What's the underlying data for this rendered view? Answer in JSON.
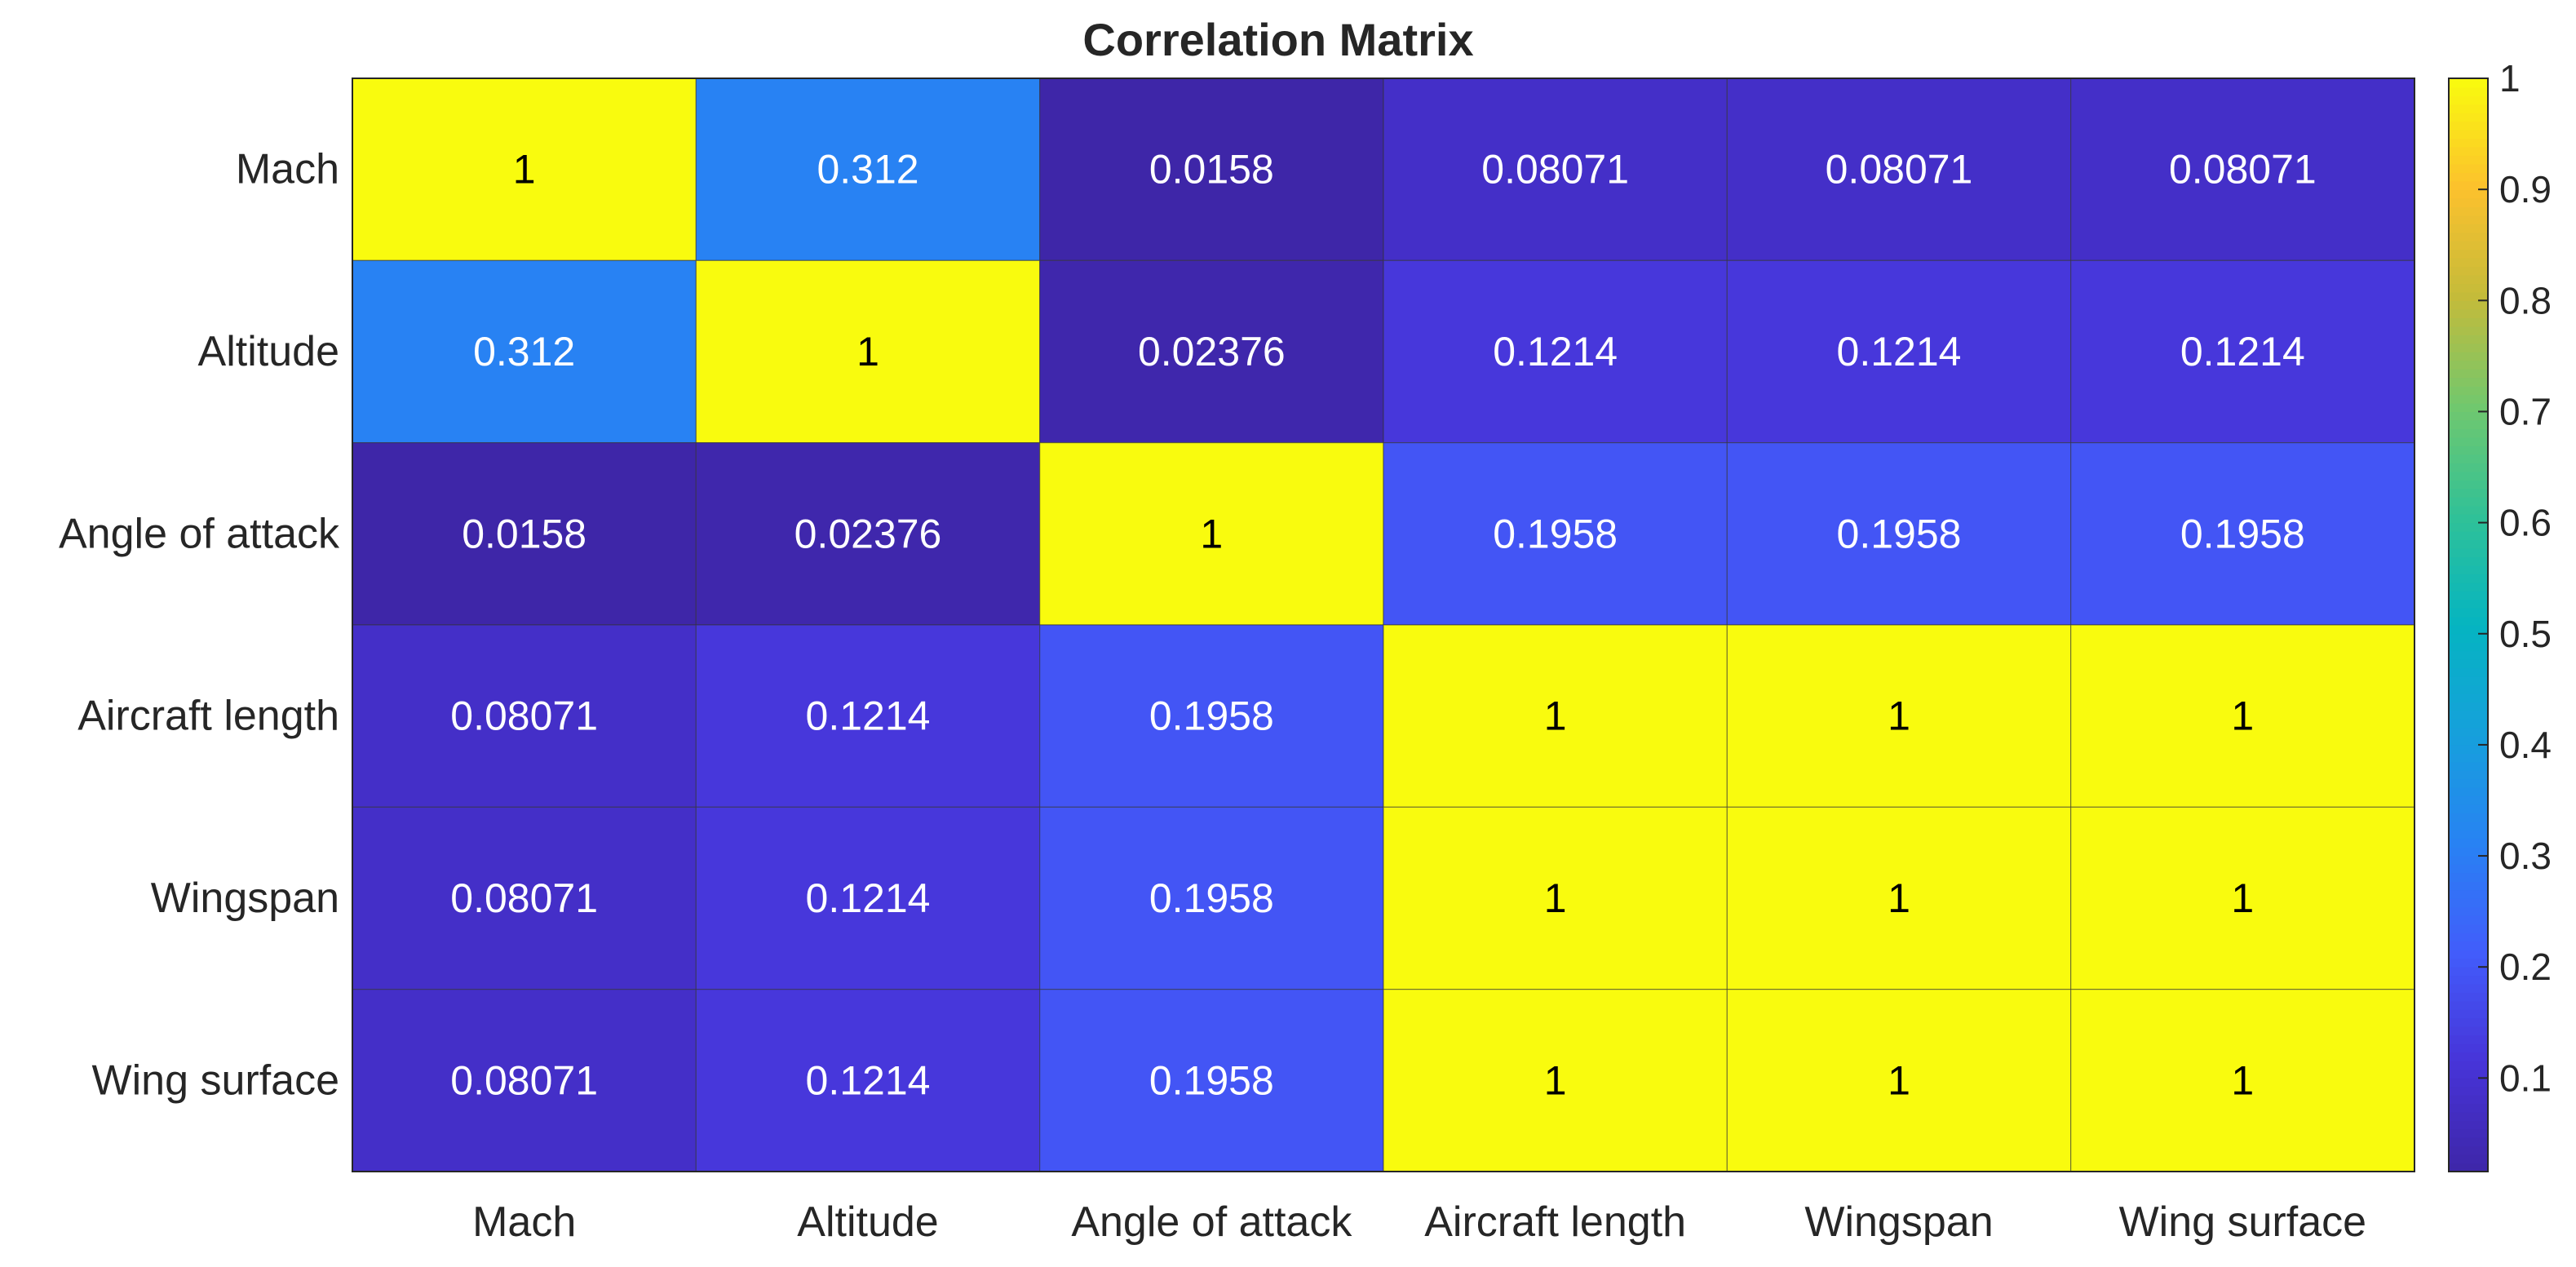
{
  "chart_data": {
    "type": "heatmap",
    "title": "Correlation Matrix",
    "xlabel": "",
    "ylabel": "",
    "x_labels": [
      "Mach",
      "Altitude",
      "Angle of attack",
      "Aircraft length",
      "Wingspan",
      "Wing surface"
    ],
    "y_labels": [
      "Mach",
      "Altitude",
      "Angle of attack",
      "Aircraft length",
      "Wingspan",
      "Wing surface"
    ],
    "values": [
      [
        1,
        0.312,
        0.0158,
        0.08071,
        0.08071,
        0.08071
      ],
      [
        0.312,
        1,
        0.02376,
        0.1214,
        0.1214,
        0.1214
      ],
      [
        0.0158,
        0.02376,
        1,
        0.1958,
        0.1958,
        0.1958
      ],
      [
        0.08071,
        0.1214,
        0.1958,
        1,
        1,
        1
      ],
      [
        0.08071,
        0.1214,
        0.1958,
        1,
        1,
        1
      ],
      [
        0.08071,
        0.1214,
        0.1958,
        1,
        1,
        1
      ]
    ],
    "cell_labels": [
      [
        "1",
        "0.312",
        "0.0158",
        "0.08071",
        "0.08071",
        "0.08071"
      ],
      [
        "0.312",
        "1",
        "0.02376",
        "0.1214",
        "0.1214",
        "0.1214"
      ],
      [
        "0.0158",
        "0.02376",
        "1",
        "0.1958",
        "0.1958",
        "0.1958"
      ],
      [
        "0.08071",
        "0.1214",
        "0.1958",
        "1",
        "1",
        "1"
      ],
      [
        "0.08071",
        "0.1214",
        "0.1958",
        "1",
        "1",
        "1"
      ],
      [
        "0.08071",
        "0.1214",
        "0.1958",
        "1",
        "1",
        "1"
      ]
    ],
    "colormap": "parula",
    "colorbar": {
      "range": [
        0.0158,
        1
      ],
      "ticks": [
        0.1,
        0.2,
        0.3,
        0.4,
        0.5,
        0.6,
        0.7,
        0.8,
        0.9,
        1
      ],
      "tick_labels": [
        "0.1",
        "0.2",
        "0.3",
        "0.4",
        "0.5",
        "0.6",
        "0.7",
        "0.8",
        "0.9",
        "1"
      ],
      "placement": "right"
    },
    "colors": {
      "text_dark": "#000000",
      "text_light": "#ffffff",
      "grid": "#333333",
      "axis": "#262626"
    }
  }
}
